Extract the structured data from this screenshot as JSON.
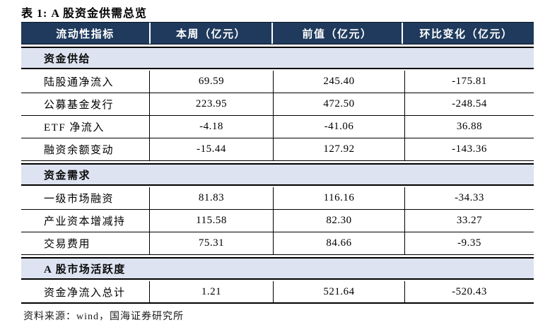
{
  "title": "表 1: A 股资金供需总览",
  "source_note": "资料来源：wind，国海证券研究所",
  "colors": {
    "header_bg": "#1f3a5c",
    "header_text": "#ffffff",
    "section_bg": "#dde3f0",
    "border": "#000000"
  },
  "table": {
    "columns": [
      "流动性指标",
      "本周（亿元）",
      "前值（亿元）",
      "环比变化（亿元）"
    ],
    "sections": [
      {
        "title": "资金供给",
        "rows": [
          {
            "label": "陆股通净流入",
            "current": "69.59",
            "previous": "245.40",
            "change": "-175.81"
          },
          {
            "label": "公募基金发行",
            "current": "223.95",
            "previous": "472.50",
            "change": "-248.54"
          },
          {
            "label": "ETF 净流入",
            "current": "-4.18",
            "previous": "-41.06",
            "change": "36.88"
          },
          {
            "label": "融资余额变动",
            "current": "-15.44",
            "previous": "127.92",
            "change": "-143.36"
          }
        ]
      },
      {
        "title": "资金需求",
        "rows": [
          {
            "label": "一级市场融资",
            "current": "81.83",
            "previous": "116.16",
            "change": "-34.33"
          },
          {
            "label": "产业资本增减持",
            "current": "115.58",
            "previous": "82.30",
            "change": "33.27"
          },
          {
            "label": "交易费用",
            "current": "75.31",
            "previous": "84.66",
            "change": "-9.35"
          }
        ]
      },
      {
        "title": "A 股市场活跃度",
        "rows": [
          {
            "label": "资金净流入总计",
            "current": "1.21",
            "previous": "521.64",
            "change": "-520.43"
          }
        ]
      }
    ]
  }
}
